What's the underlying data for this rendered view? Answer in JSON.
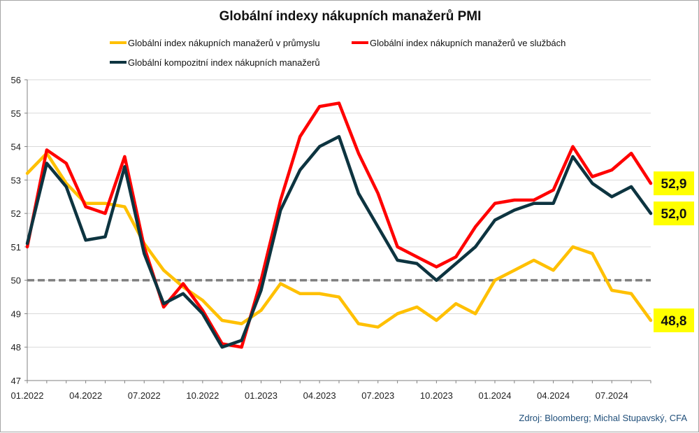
{
  "chart_data": {
    "type": "line",
    "title": "Globální indexy nákupních manažerů PMI",
    "ylim": [
      47,
      56
    ],
    "yticks": [
      47,
      48,
      49,
      50,
      51,
      52,
      53,
      54,
      55,
      56
    ],
    "x_tick_labels": [
      "01.2022",
      "04.2022",
      "07.2022",
      "10.2022",
      "01.2023",
      "04.2023",
      "07.2023",
      "10.2023",
      "01.2024",
      "04.2024",
      "07.2024"
    ],
    "x": [
      "01.2022",
      "02.2022",
      "03.2022",
      "04.2022",
      "05.2022",
      "06.2022",
      "07.2022",
      "08.2022",
      "09.2022",
      "10.2022",
      "11.2022",
      "12.2022",
      "01.2023",
      "02.2023",
      "03.2023",
      "04.2023",
      "05.2023",
      "06.2023",
      "07.2023",
      "08.2023",
      "09.2023",
      "10.2023",
      "11.2023",
      "12.2023",
      "01.2024",
      "02.2024",
      "03.2024",
      "04.2024",
      "05.2024",
      "06.2024",
      "07.2024",
      "08.2024",
      "09.2024"
    ],
    "reference_line": {
      "value": 50,
      "style": "dashed",
      "color": "#808080"
    },
    "series": [
      {
        "name": "Globální index nákupních manažerů v průmyslu",
        "color": "#ffc000",
        "values": [
          53.2,
          53.8,
          52.9,
          52.3,
          52.3,
          52.2,
          51.1,
          50.3,
          49.8,
          49.4,
          48.8,
          48.7,
          49.1,
          49.9,
          49.6,
          49.6,
          49.5,
          48.7,
          48.6,
          49.0,
          49.2,
          48.8,
          49.3,
          49.0,
          50.0,
          50.3,
          50.6,
          50.3,
          51.0,
          50.8,
          49.7,
          49.6,
          48.8
        ]
      },
      {
        "name": "Globální index nákupních manažerů ve službách",
        "color": "#ff0000",
        "values": [
          51.0,
          53.9,
          53.5,
          52.2,
          52.0,
          53.7,
          51.0,
          49.2,
          49.9,
          49.1,
          48.1,
          48.0,
          50.0,
          52.4,
          54.3,
          55.2,
          55.3,
          53.8,
          52.6,
          51.0,
          50.7,
          50.4,
          50.7,
          51.6,
          52.3,
          52.4,
          52.4,
          52.7,
          54.0,
          53.1,
          53.3,
          53.8,
          52.9
        ]
      },
      {
        "name": "Globální kompozitní index nákupních manažerů",
        "color": "#0d3440",
        "values": [
          51.1,
          53.5,
          52.8,
          51.2,
          51.3,
          53.4,
          50.8,
          49.3,
          49.6,
          49.0,
          48.0,
          48.2,
          49.7,
          52.1,
          53.3,
          54.0,
          54.3,
          52.6,
          51.6,
          50.6,
          50.5,
          50.0,
          50.5,
          51.0,
          51.8,
          52.1,
          52.3,
          52.3,
          53.7,
          52.9,
          52.5,
          52.8,
          52.0
        ]
      }
    ],
    "callouts": [
      {
        "label": "52,9",
        "value": 52.9
      },
      {
        "label": "52,0",
        "value": 52.0
      },
      {
        "label": "48,8",
        "value": 48.8
      }
    ],
    "callout_color": "#ffff00",
    "source": "Zdroj: Bloomberg; Michal Stupavský, CFA",
    "grid": true
  }
}
